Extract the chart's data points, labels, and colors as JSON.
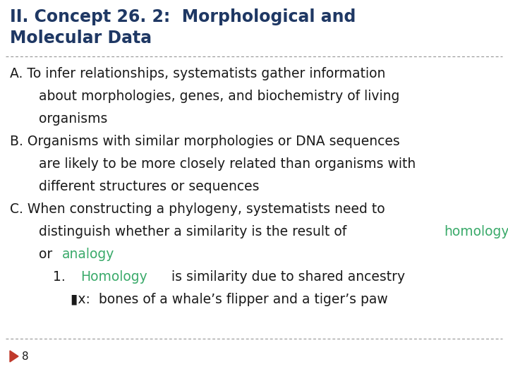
{
  "title_line1": "II. Concept 26. 2:  Morphological and",
  "title_line2": "Molecular Data",
  "title_color": "#1F3864",
  "background_color": "#FFFFFF",
  "separator_color": "#888888",
  "body_color": "#1a1a1a",
  "highlight_color": "#3aaa6a",
  "bullet_color": "#c0392b",
  "footer_number": "8",
  "title_fontsize": 17,
  "body_fontsize": 13.5,
  "footer_fontsize": 11
}
